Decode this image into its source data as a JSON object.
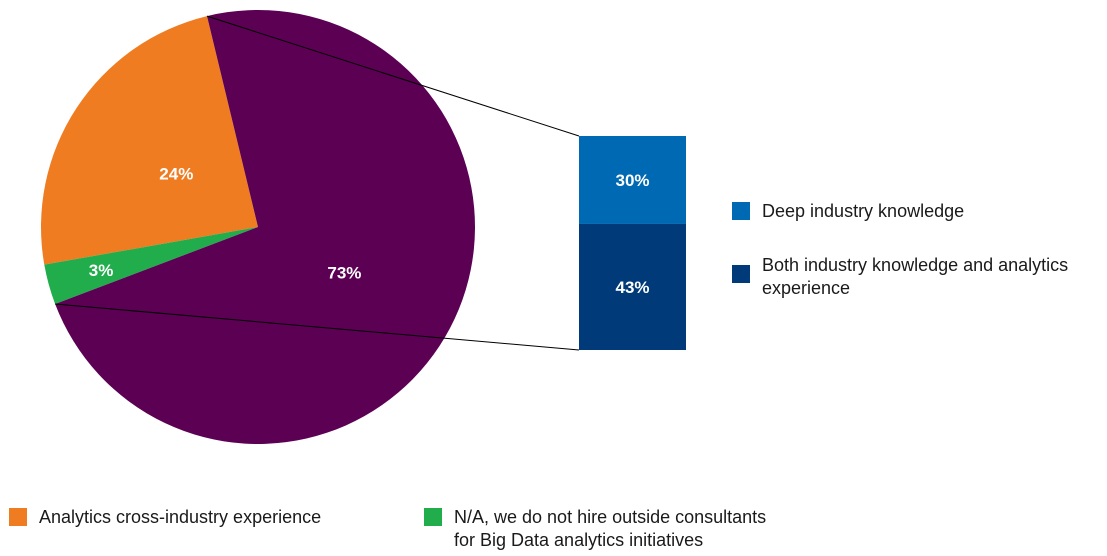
{
  "chart_data": {
    "type": "pie",
    "slices": [
      {
        "label": "Analytics cross-industry experience",
        "value": 24,
        "value_label": "24%",
        "color": "#f07c22"
      },
      {
        "label": "N/A, we do not hire outside consultants for Big Data analytics initiatives",
        "value": 3,
        "value_label": "3%",
        "color": "#21ad4b"
      },
      {
        "label": "",
        "value": 73,
        "value_label": "73%",
        "color": "#5c0054"
      }
    ],
    "breakdown_of": "73%",
    "breakdown": [
      {
        "label": "Deep industry knowledge",
        "value": 30,
        "value_label": "30%",
        "color": "#0069b4"
      },
      {
        "label": "Both industry knowledge and analytics experience",
        "value": 43,
        "value_label": "43%",
        "color": "#003a78"
      }
    ]
  },
  "legend": {
    "deep": {
      "label": "Deep industry knowledge",
      "icon": "blue-square-icon"
    },
    "both": {
      "label_line1": "Both industry knowledge and analytics",
      "label_line2": "experience",
      "icon": "navy-square-icon"
    },
    "analytics": {
      "label": "Analytics cross-industry experience",
      "icon": "orange-square-icon"
    },
    "na": {
      "label_line1": "N/A, we do not hire outside consultants",
      "label_line2": "for Big Data analytics initiatives",
      "icon": "green-square-icon"
    }
  }
}
